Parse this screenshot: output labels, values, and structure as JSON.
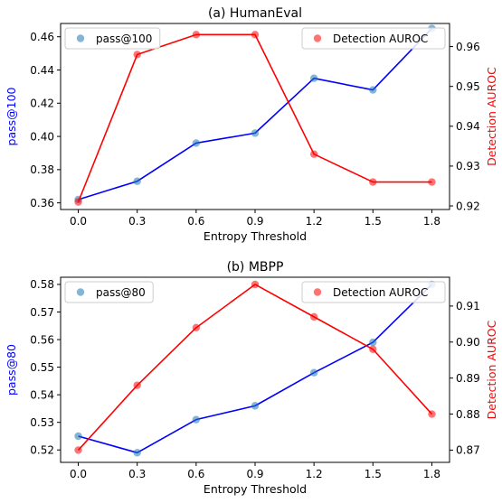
{
  "chart_data": [
    {
      "type": "line",
      "title": "(a) HumanEval",
      "xlabel": "Entropy Threshold",
      "x": [
        0.0,
        0.3,
        0.6,
        0.9,
        1.2,
        1.5,
        1.8
      ],
      "x_tick_labels": [
        "0.0",
        "0.3",
        "0.6",
        "0.9",
        "1.2",
        "1.5",
        "1.8"
      ],
      "left_axis": {
        "label": "pass@100",
        "color": "#0000ff",
        "ylim": [
          0.356,
          0.468
        ],
        "ticks": [
          0.36,
          0.38,
          0.4,
          0.42,
          0.44,
          0.46
        ],
        "tick_labels": [
          "0.36",
          "0.38",
          "0.40",
          "0.42",
          "0.44",
          "0.46"
        ]
      },
      "right_axis": {
        "label": "Detection AUROC",
        "color": "#ff0000",
        "ylim": [
          0.9191,
          0.9658
        ],
        "ticks": [
          0.92,
          0.93,
          0.94,
          0.95,
          0.96
        ],
        "tick_labels": [
          "0.92",
          "0.93",
          "0.94",
          "0.95",
          "0.96"
        ]
      },
      "series": [
        {
          "name": "pass@100",
          "axis": "left",
          "line_color": "#0000ff",
          "marker_color": "#1f77b4",
          "values": [
            0.362,
            0.373,
            0.396,
            0.402,
            0.435,
            0.428,
            0.465
          ]
        },
        {
          "name": "Detection AUROC",
          "axis": "right",
          "line_color": "#ff0000",
          "marker_color": "#ff0000",
          "values": [
            0.921,
            0.958,
            0.963,
            0.963,
            0.933,
            0.926,
            0.926
          ]
        }
      ],
      "legends": [
        {
          "series": "pass@100",
          "position": "upper-left"
        },
        {
          "series": "Detection AUROC",
          "position": "upper-right"
        }
      ],
      "grid": false
    },
    {
      "type": "line",
      "title": "(b) MBPP",
      "xlabel": "Entropy Threshold",
      "x": [
        0.0,
        0.3,
        0.6,
        0.9,
        1.2,
        1.5,
        1.8
      ],
      "x_tick_labels": [
        "0.0",
        "0.3",
        "0.6",
        "0.9",
        "1.2",
        "1.5",
        "1.8"
      ],
      "left_axis": {
        "label": "pass@80",
        "color": "#0000ff",
        "ylim": [
          0.5155,
          0.5826
        ],
        "ticks": [
          0.52,
          0.53,
          0.54,
          0.55,
          0.56,
          0.57,
          0.58
        ],
        "tick_labels": [
          "0.52",
          "0.53",
          "0.54",
          "0.55",
          "0.56",
          "0.57",
          "0.58"
        ]
      },
      "right_axis": {
        "label": "Detection AUROC",
        "color": "#ff0000",
        "ylim": [
          0.8666,
          0.918
        ],
        "ticks": [
          0.87,
          0.88,
          0.89,
          0.9,
          0.91
        ],
        "tick_labels": [
          "0.87",
          "0.88",
          "0.89",
          "0.90",
          "0.91"
        ]
      },
      "series": [
        {
          "name": "pass@80",
          "axis": "left",
          "line_color": "#0000ff",
          "marker_color": "#1f77b4",
          "values": [
            0.525,
            0.519,
            0.531,
            0.536,
            0.548,
            0.559,
            0.58
          ]
        },
        {
          "name": "Detection AUROC",
          "axis": "right",
          "line_color": "#ff0000",
          "marker_color": "#ff0000",
          "values": [
            0.87,
            0.888,
            0.904,
            0.916,
            0.907,
            0.898,
            0.88
          ]
        }
      ],
      "legends": [
        {
          "series": "pass@80",
          "position": "upper-left"
        },
        {
          "series": "Detection AUROC",
          "position": "upper-right"
        }
      ],
      "grid": false
    }
  ]
}
